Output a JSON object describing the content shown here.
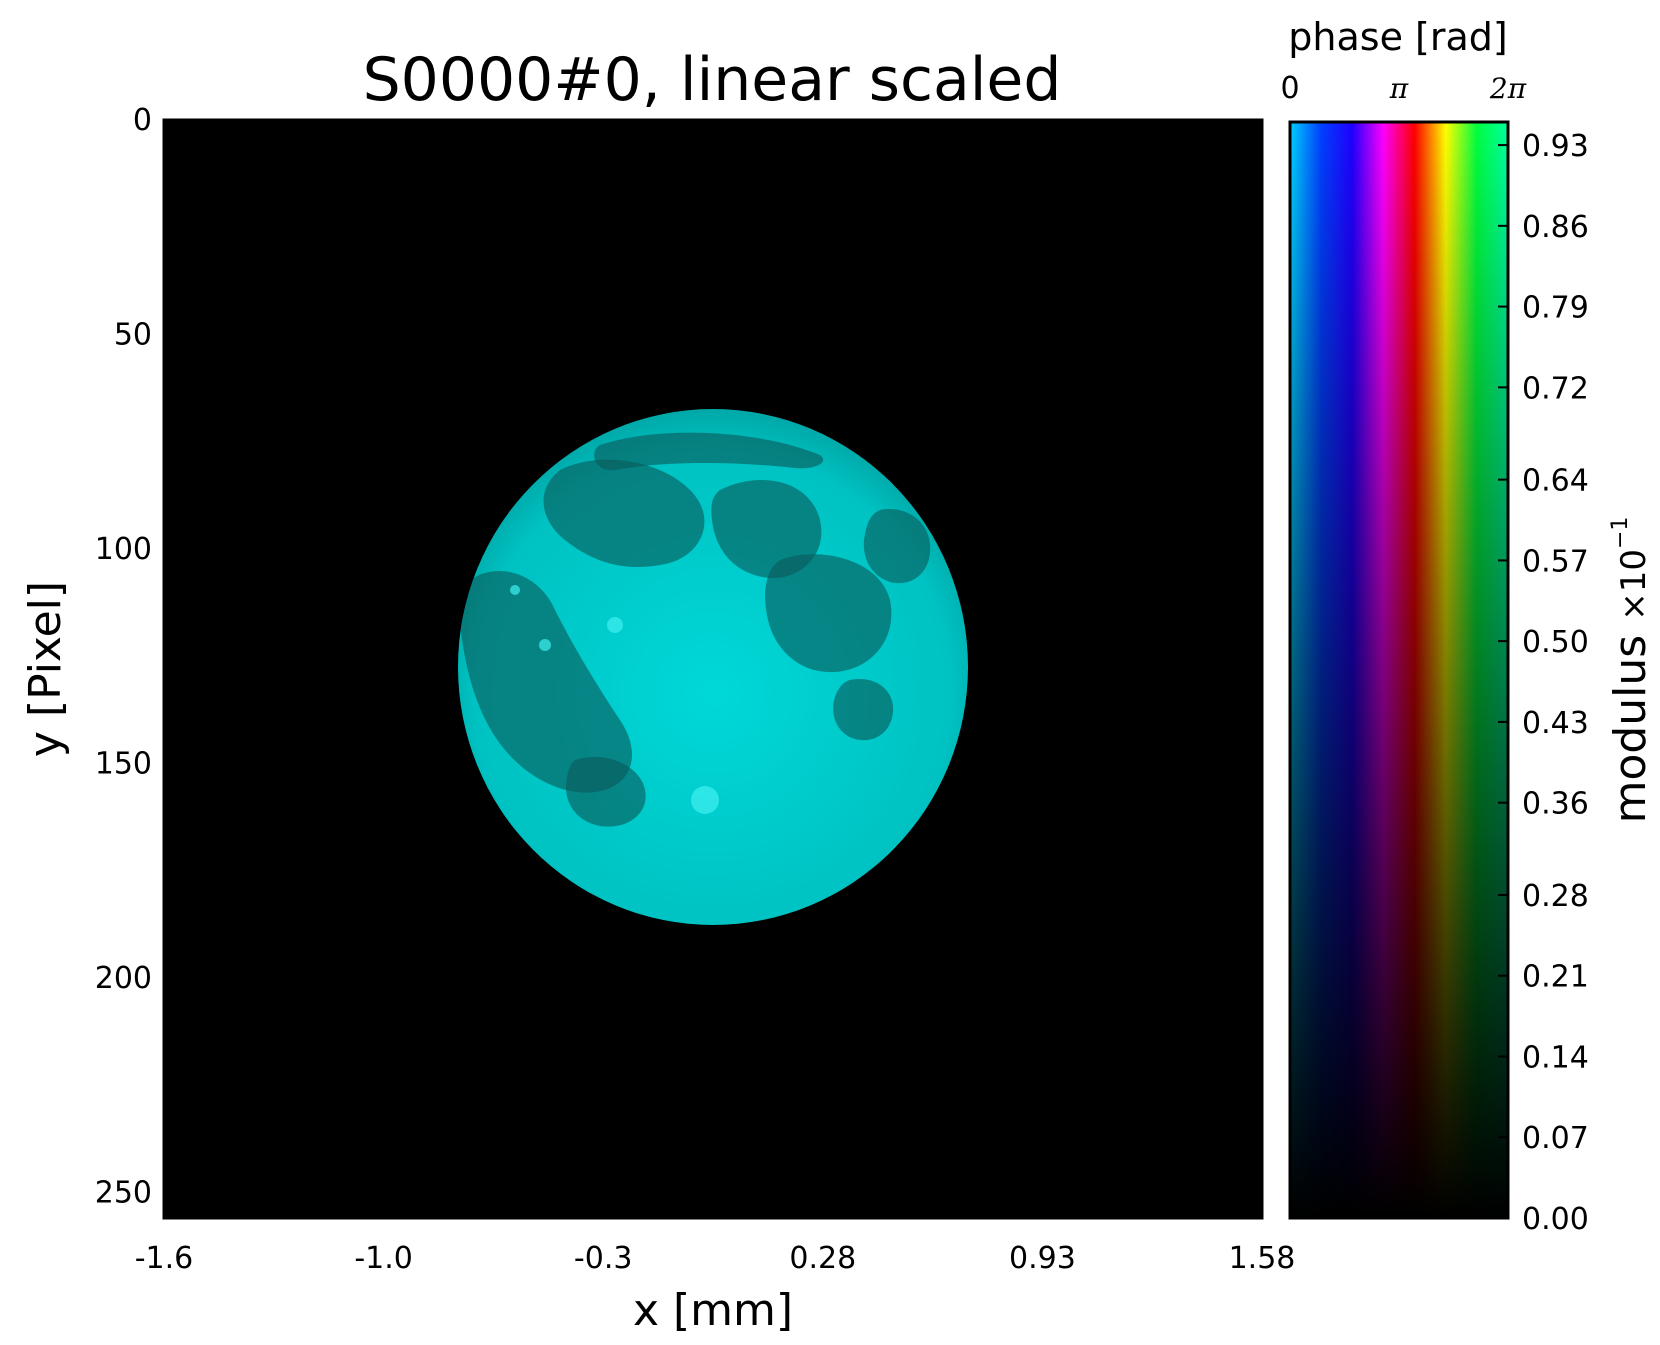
{
  "chart_data": {
    "type": "heatmap",
    "title": "S0000#0, linear scaled",
    "xlabel": "x [mm]",
    "ylabel": "y [Pixel]",
    "x_ticks": [
      "-1.6",
      "-1.0",
      "-0.3",
      "0.28",
      "0.93",
      "1.58"
    ],
    "x_tick_values": [
      -1.6,
      -1.0,
      -0.3,
      0.28,
      0.93,
      1.58
    ],
    "xlim": [
      -1.6,
      1.58
    ],
    "y_ticks": [
      "0",
      "50",
      "100",
      "150",
      "200",
      "250"
    ],
    "y_tick_values": [
      0,
      50,
      100,
      150,
      200,
      250
    ],
    "ylim": [
      0,
      256
    ],
    "y_inverted": true,
    "image_content": "moon",
    "image_color": "#00e0e0",
    "background_color": "#000000",
    "colorbar": {
      "phase_label": "phase [rad]",
      "phase_ticks": [
        {
          "label": "0",
          "value": 0
        },
        {
          "label": "π",
          "value": 3.14159
        },
        {
          "label": "2π",
          "value": 6.28318
        }
      ],
      "modulus_label": "modulus",
      "modulus_multiplier_base": "×10",
      "modulus_multiplier_exponent": "−1",
      "modulus_ticks": [
        "0.93",
        "0.86",
        "0.79",
        "0.72",
        "0.64",
        "0.57",
        "0.50",
        "0.43",
        "0.36",
        "0.28",
        "0.21",
        "0.14",
        "0.07",
        "0.00"
      ],
      "modulus_tick_values": [
        0.93,
        0.86,
        0.79,
        0.72,
        0.64,
        0.57,
        0.5,
        0.43,
        0.36,
        0.28,
        0.21,
        0.14,
        0.07,
        0.0
      ],
      "modulus_range": [
        0,
        0.95
      ],
      "hue_stops": [
        "#00d0ff",
        "#0040ff",
        "#2000ff",
        "#ff00ff",
        "#ff0000",
        "#ffff00",
        "#00ff40",
        "#00ffa0"
      ]
    }
  }
}
